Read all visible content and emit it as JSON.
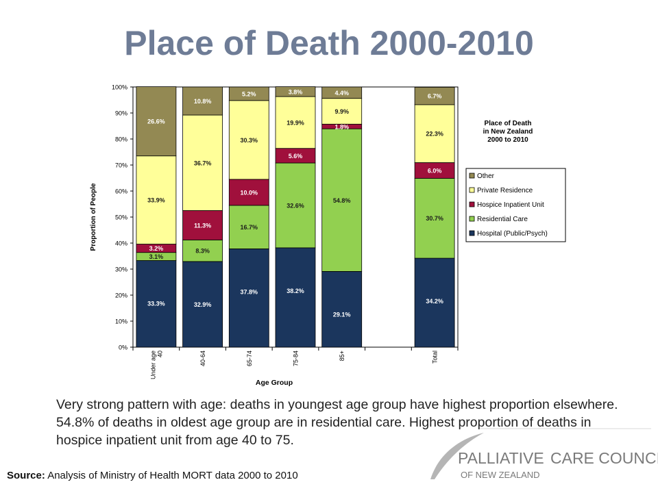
{
  "slide": {
    "title": "Place of Death 2000-2010",
    "description": "Very strong pattern with age: deaths in youngest age group have highest proportion elsewhere. 54.8% of deaths in oldest age group are in residential care. Highest proportion of deaths in hospice inpatient unit from age 40 to 75.",
    "source_label": "Source:",
    "source_text": " Analysis of Ministry of Health MORT data 2000 to 2010"
  },
  "logo": {
    "line1_a": "PALLIATIVE",
    "line1_b": "CARE COUNCIL",
    "line2": "OF NEW ZEALAND",
    "colors": {
      "text": "#7A7A7A",
      "swoosh": "#B5B5B5"
    }
  },
  "chart_data": {
    "type": "bar",
    "stacked": true,
    "title": [
      "Place of Death",
      "in New Zealand",
      "2000 to 2010"
    ],
    "xlabel": "Age Group",
    "ylabel": "Proportion of People",
    "ylim": [
      0,
      100
    ],
    "yticks": [
      "0%",
      "10%",
      "20%",
      "30%",
      "40%",
      "50%",
      "60%",
      "70%",
      "80%",
      "90%",
      "100%"
    ],
    "categories": [
      [
        "Under age",
        "40"
      ],
      [
        "40-64"
      ],
      [
        "65-74"
      ],
      [
        "75-84"
      ],
      [
        "85+"
      ],
      [],
      [
        "Total"
      ]
    ],
    "grid": false,
    "legend_position": "right",
    "series": [
      {
        "name": "Hospital (Public/Psych)",
        "color": "#1B365D",
        "label_color": "#ffffff",
        "values": [
          33.3,
          32.9,
          37.8,
          38.2,
          29.1,
          null,
          34.2
        ],
        "labels": [
          "33.3%",
          "32.9%",
          "37.8%",
          "38.2%",
          "29.1%",
          "",
          "34.2%"
        ]
      },
      {
        "name": "Residential Care",
        "color": "#92D050",
        "label_color": "#1a1a1a",
        "values": [
          3.1,
          8.3,
          16.7,
          32.6,
          54.8,
          null,
          30.7
        ],
        "labels": [
          "3.1%",
          "8.3%",
          "16.7%",
          "32.6%",
          "54.8%",
          "",
          "30.7%"
        ]
      },
      {
        "name": "Hospice Inpatient Unit",
        "color": "#A0103C",
        "label_color": "#ffffff",
        "values": [
          3.2,
          11.3,
          10.0,
          5.6,
          1.8,
          null,
          6.0
        ],
        "labels": [
          "3.2%",
          "11.3%",
          "10.0%",
          "5.6%",
          "1.8%",
          "",
          "6.0%"
        ]
      },
      {
        "name": "Private Residence",
        "color": "#FFFF99",
        "label_color": "#1a1a1a",
        "values": [
          33.9,
          36.7,
          30.3,
          19.9,
          9.9,
          null,
          22.3
        ],
        "labels": [
          "33.9%",
          "36.7%",
          "30.3%",
          "19.9%",
          "9.9%",
          "",
          "22.3%"
        ]
      },
      {
        "name": "Other",
        "color": "#938953",
        "label_color": "#ffffff",
        "values": [
          26.6,
          10.8,
          5.2,
          3.8,
          4.4,
          null,
          6.7
        ],
        "labels": [
          "26.6%",
          "10.8%",
          "5.2%",
          "3.8%",
          "4.4%",
          "",
          "6.7%"
        ]
      }
    ],
    "legend_order": [
      "Other",
      "Private Residence",
      "Hospice Inpatient Unit",
      "Residential Care",
      "Hospital (Public/Psych)"
    ]
  }
}
